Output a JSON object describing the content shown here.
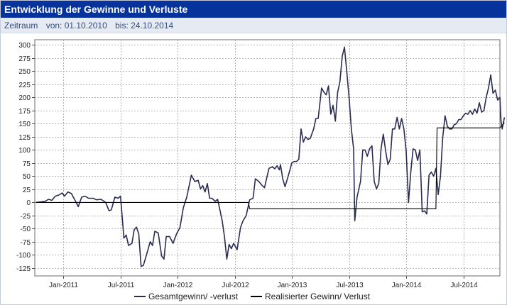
{
  "header": {
    "title": "Entwicklung der Gewinne und Verluste"
  },
  "period": {
    "label": "Zeitraum",
    "from": "von: 01.10.2010",
    "to": "bis: 24.10.2014"
  },
  "chart_data": {
    "type": "line",
    "title": "Entwicklung der Gewinne und Verluste",
    "xlabel": "",
    "ylabel": "",
    "xlim": [
      2010.75,
      2014.82
    ],
    "ylim": [
      -140,
      310
    ],
    "yticks": [
      300,
      275,
      250,
      225,
      200,
      175,
      150,
      125,
      100,
      75,
      50,
      25,
      0,
      -25,
      -50,
      -75,
      -100,
      -125
    ],
    "xticks": [
      {
        "label": "Jan-2011",
        "x": 2011.0
      },
      {
        "label": "Jul-2011",
        "x": 2011.5
      },
      {
        "label": "Jan-2012",
        "x": 2012.0
      },
      {
        "label": "Jul-2012",
        "x": 2012.5
      },
      {
        "label": "Jan-2013",
        "x": 2013.0
      },
      {
        "label": "Jul-2013",
        "x": 2013.5
      },
      {
        "label": "Jan-2014",
        "x": 2014.0
      },
      {
        "label": "Jul-2014",
        "x": 2014.5
      }
    ],
    "grid": true,
    "legend_position": "bottom-center",
    "series": [
      {
        "name": "Gesamtgewinn/ -verlust",
        "color": "#2a2c52",
        "points": [
          [
            2010.76,
            0
          ],
          [
            2010.8,
            1
          ],
          [
            2010.84,
            2
          ],
          [
            2010.87,
            6
          ],
          [
            2010.9,
            4
          ],
          [
            2010.93,
            12
          ],
          [
            2010.96,
            14
          ],
          [
            2010.99,
            18
          ],
          [
            2011.01,
            12
          ],
          [
            2011.04,
            20
          ],
          [
            2011.07,
            17
          ],
          [
            2011.1,
            5
          ],
          [
            2011.13,
            -8
          ],
          [
            2011.16,
            10
          ],
          [
            2011.19,
            12
          ],
          [
            2011.22,
            8
          ],
          [
            2011.26,
            8
          ],
          [
            2011.29,
            5
          ],
          [
            2011.33,
            6
          ],
          [
            2011.37,
            0
          ],
          [
            2011.4,
            -16
          ],
          [
            2011.42,
            -14
          ],
          [
            2011.45,
            10
          ],
          [
            2011.48,
            8
          ],
          [
            2011.5,
            12
          ],
          [
            2011.53,
            -68
          ],
          [
            2011.55,
            -62
          ],
          [
            2011.57,
            -82
          ],
          [
            2011.6,
            -78
          ],
          [
            2011.62,
            -52
          ],
          [
            2011.64,
            -47
          ],
          [
            2011.66,
            -60
          ],
          [
            2011.68,
            -122
          ],
          [
            2011.7,
            -120
          ],
          [
            2011.73,
            -98
          ],
          [
            2011.76,
            -75
          ],
          [
            2011.78,
            -82
          ],
          [
            2011.8,
            -55
          ],
          [
            2011.83,
            -58
          ],
          [
            2011.86,
            -102
          ],
          [
            2011.88,
            -108
          ],
          [
            2011.9,
            -65
          ],
          [
            2011.93,
            -65
          ],
          [
            2011.96,
            -78
          ],
          [
            2011.99,
            -60
          ],
          [
            2012.02,
            -48
          ],
          [
            2012.05,
            -10
          ],
          [
            2012.08,
            10
          ],
          [
            2012.12,
            52
          ],
          [
            2012.15,
            40
          ],
          [
            2012.18,
            42
          ],
          [
            2012.2,
            26
          ],
          [
            2012.22,
            32
          ],
          [
            2012.24,
            20
          ],
          [
            2012.26,
            36
          ],
          [
            2012.28,
            8
          ],
          [
            2012.3,
            8
          ],
          [
            2012.33,
            2
          ],
          [
            2012.35,
            6
          ],
          [
            2012.37,
            -14
          ],
          [
            2012.39,
            -35
          ],
          [
            2012.41,
            -65
          ],
          [
            2012.43,
            -108
          ],
          [
            2012.45,
            -80
          ],
          [
            2012.47,
            -88
          ],
          [
            2012.49,
            -78
          ],
          [
            2012.52,
            -90
          ],
          [
            2012.55,
            -48
          ],
          [
            2012.57,
            -36
          ],
          [
            2012.6,
            -25
          ],
          [
            2012.63,
            5
          ],
          [
            2012.66,
            8
          ],
          [
            2012.68,
            45
          ],
          [
            2012.71,
            40
          ],
          [
            2012.74,
            32
          ],
          [
            2012.76,
            28
          ],
          [
            2012.78,
            47
          ],
          [
            2012.8,
            65
          ],
          [
            2012.83,
            68
          ],
          [
            2012.85,
            64
          ],
          [
            2012.87,
            70
          ],
          [
            2012.89,
            62
          ],
          [
            2012.9,
            72
          ],
          [
            2012.92,
            45
          ],
          [
            2012.94,
            30
          ],
          [
            2012.96,
            45
          ],
          [
            2012.98,
            60
          ],
          [
            2013.0,
            76
          ],
          [
            2013.02,
            78
          ],
          [
            2013.04,
            78
          ],
          [
            2013.06,
            82
          ],
          [
            2013.08,
            140
          ],
          [
            2013.1,
            115
          ],
          [
            2013.12,
            125
          ],
          [
            2013.14,
            120
          ],
          [
            2013.16,
            122
          ],
          [
            2013.19,
            140
          ],
          [
            2013.21,
            160
          ],
          [
            2013.23,
            160
          ],
          [
            2013.26,
            218
          ],
          [
            2013.28,
            210
          ],
          [
            2013.3,
            205
          ],
          [
            2013.32,
            222
          ],
          [
            2013.34,
            168
          ],
          [
            2013.36,
            185
          ],
          [
            2013.38,
            155
          ],
          [
            2013.4,
            210
          ],
          [
            2013.42,
            230
          ],
          [
            2013.44,
            278
          ],
          [
            2013.46,
            296
          ],
          [
            2013.48,
            250
          ],
          [
            2013.5,
            200
          ],
          [
            2013.52,
            140
          ],
          [
            2013.54,
            102
          ],
          [
            2013.55,
            -35
          ],
          [
            2013.57,
            10
          ],
          [
            2013.6,
            40
          ],
          [
            2013.62,
            100
          ],
          [
            2013.64,
            100
          ],
          [
            2013.66,
            88
          ],
          [
            2013.68,
            102
          ],
          [
            2013.7,
            108
          ],
          [
            2013.72,
            40
          ],
          [
            2013.74,
            26
          ],
          [
            2013.76,
            36
          ],
          [
            2013.78,
            102
          ],
          [
            2013.8,
            130
          ],
          [
            2013.82,
            98
          ],
          [
            2013.84,
            72
          ],
          [
            2013.86,
            82
          ],
          [
            2013.88,
            140
          ],
          [
            2013.9,
            140
          ],
          [
            2013.92,
            162
          ],
          [
            2013.94,
            140
          ],
          [
            2013.96,
            160
          ],
          [
            2013.98,
            140
          ],
          [
            2014.0,
            98
          ],
          [
            2014.02,
            0
          ],
          [
            2014.04,
            58
          ],
          [
            2014.06,
            102
          ],
          [
            2014.08,
            100
          ],
          [
            2014.1,
            80
          ],
          [
            2014.12,
            100
          ],
          [
            2014.14,
            -18
          ],
          [
            2014.16,
            -16
          ],
          [
            2014.18,
            -22
          ],
          [
            2014.2,
            52
          ],
          [
            2014.22,
            58
          ],
          [
            2014.24,
            50
          ],
          [
            2014.26,
            65
          ],
          [
            2014.28,
            15
          ],
          [
            2014.3,
            50
          ],
          [
            2014.32,
            124
          ],
          [
            2014.34,
            165
          ],
          [
            2014.36,
            145
          ],
          [
            2014.38,
            140
          ],
          [
            2014.4,
            140
          ],
          [
            2014.42,
            148
          ],
          [
            2014.44,
            150
          ],
          [
            2014.46,
            158
          ],
          [
            2014.48,
            158
          ],
          [
            2014.5,
            165
          ],
          [
            2014.52,
            170
          ],
          [
            2014.54,
            168
          ],
          [
            2014.56,
            175
          ],
          [
            2014.58,
            168
          ],
          [
            2014.6,
            178
          ],
          [
            2014.62,
            170
          ],
          [
            2014.64,
            190
          ],
          [
            2014.66,
            172
          ],
          [
            2014.68,
            175
          ],
          [
            2014.7,
            200
          ],
          [
            2014.72,
            218
          ],
          [
            2014.74,
            243
          ],
          [
            2014.76,
            208
          ],
          [
            2014.78,
            214
          ],
          [
            2014.8,
            195
          ],
          [
            2014.82,
            200
          ],
          [
            2014.83,
            155
          ],
          [
            2014.84,
            140
          ],
          [
            2014.86,
            162
          ]
        ]
      },
      {
        "name": "Realisierter Gewinn/ Verlust",
        "color": "#000000",
        "points": [
          [
            2010.76,
            0
          ],
          [
            2012.62,
            0
          ],
          [
            2012.63,
            -12
          ],
          [
            2014.26,
            -12
          ],
          [
            2014.27,
            142
          ],
          [
            2014.82,
            142
          ],
          [
            2014.86,
            152
          ]
        ]
      }
    ]
  }
}
